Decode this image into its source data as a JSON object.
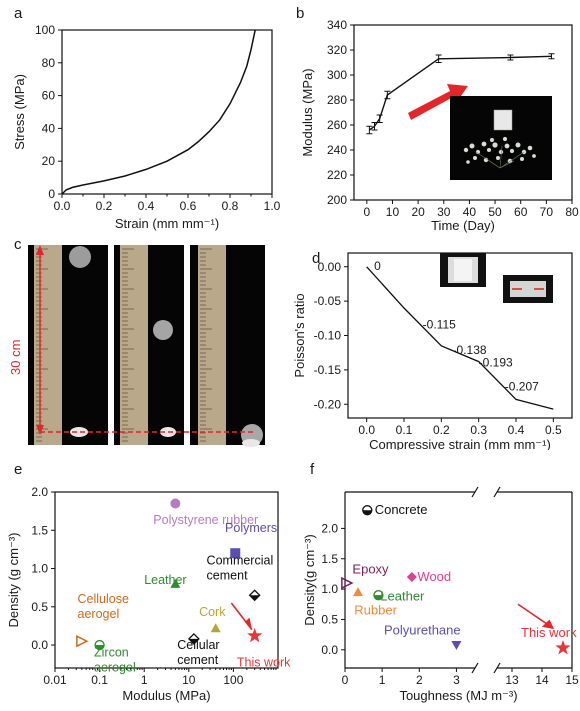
{
  "panels": {
    "a": "a",
    "b": "b",
    "c": "c",
    "d": "d",
    "e": "e",
    "f": "f"
  },
  "photo": {
    "height_label": "30 cm"
  },
  "chart_data": [
    {
      "id": "a",
      "type": "line",
      "title": "",
      "xlabel": "Strain (mm mm⁻¹)",
      "ylabel": "Stress (MPa)",
      "xlim": [
        0.0,
        1.0
      ],
      "ylim": [
        0,
        100
      ],
      "xticks": [
        "0.0",
        "0.2",
        "0.4",
        "0.6",
        "0.8",
        "1.0"
      ],
      "yticks": [
        "0",
        "20",
        "40",
        "60",
        "80",
        "100"
      ],
      "x": [
        0.0,
        0.02,
        0.05,
        0.1,
        0.2,
        0.3,
        0.4,
        0.5,
        0.6,
        0.65,
        0.7,
        0.75,
        0.8,
        0.85,
        0.88,
        0.9,
        0.92
      ],
      "y": [
        0,
        2.5,
        4,
        5.5,
        8,
        11,
        15,
        20,
        27,
        32,
        38,
        45,
        55,
        68,
        78,
        88,
        100
      ]
    },
    {
      "id": "b",
      "type": "line",
      "title": "",
      "xlabel": "Time (Day)",
      "ylabel": "Modulus (MPa)",
      "xlim": [
        -5,
        80
      ],
      "ylim": [
        200,
        340
      ],
      "xticks": [
        "0",
        "10",
        "20",
        "30",
        "40",
        "50",
        "60",
        "70",
        "80"
      ],
      "yticks": [
        "200",
        "220",
        "240",
        "260",
        "280",
        "300",
        "320",
        "340"
      ],
      "x": [
        1,
        3,
        5,
        8,
        28,
        56,
        72
      ],
      "y": [
        256,
        259,
        265,
        284,
        313,
        314,
        315
      ],
      "err": [
        3,
        3,
        3,
        3,
        3,
        2,
        2
      ]
    },
    {
      "id": "d",
      "type": "line",
      "title": "",
      "xlabel": "Compressive strain (mm mm⁻¹)",
      "ylabel": "Poisson's ratio",
      "xlim": [
        -0.05,
        0.55
      ],
      "ylim": [
        -0.22,
        0.02
      ],
      "xticks": [
        "0.0",
        "0.1",
        "0.2",
        "0.3",
        "0.4",
        "0.5"
      ],
      "yticks": [
        "0.00",
        "-0.05",
        "-0.10",
        "-0.15",
        "-0.20"
      ],
      "x": [
        0.0,
        0.1,
        0.2,
        0.3,
        0.4,
        0.5
      ],
      "y": [
        0.0,
        -0.06,
        -0.115,
        -0.138,
        -0.193,
        -0.207
      ],
      "annotations": [
        {
          "text": "0",
          "x": 0.02,
          "y": -0.005
        },
        {
          "text": "-0.115",
          "x": 0.15,
          "y": -0.09
        },
        {
          "text": "-0.138",
          "x": 0.23,
          "y": -0.127
        },
        {
          "text": "-0.193",
          "x": 0.3,
          "y": -0.145
        },
        {
          "text": "-0.207",
          "x": 0.37,
          "y": -0.18
        }
      ]
    },
    {
      "id": "e",
      "type": "scatter",
      "title": "",
      "xlabel": "Modulus (MPa)",
      "ylabel": "Density (g cm⁻³)",
      "xscale": "log",
      "xlim": [
        0.01,
        1000
      ],
      "ylim": [
        -0.3,
        2.0
      ],
      "xticks": [
        "0.01",
        "0.1",
        "1",
        "10",
        "100"
      ],
      "yticks": [
        "0.0",
        "0.5",
        "1.0",
        "1.5",
        "2.0"
      ],
      "points": [
        {
          "label": "Polystyrene rubber",
          "x": 5,
          "y": 1.85,
          "color": "#b57dc2",
          "marker": "circle",
          "label_x": 1.6,
          "label_y": 1.58
        },
        {
          "label": "Polymers",
          "x": 110,
          "y": 1.2,
          "color": "#5a4fb0",
          "marker": "square",
          "label_x": 65,
          "label_y": 1.48
        },
        {
          "label": "Leather",
          "x": 5,
          "y": 0.8,
          "color": "#2e8b2e",
          "marker": "triangle",
          "label_x": 1.0,
          "label_y": 0.8
        },
        {
          "label": "Commercial cement",
          "x": 300,
          "y": 0.65,
          "color": "#111111",
          "marker": "diamond-half",
          "label_x": 25,
          "label_y": 1.05,
          "label2": ""
        },
        {
          "label": "Cellulose aerogel",
          "x": 0.04,
          "y": 0.05,
          "color": "#d2691e",
          "marker": "triangle-right",
          "label_x": 0.032,
          "label_y": 0.55
        },
        {
          "label": "Zircon aerogel",
          "x": 0.1,
          "y": 0.0,
          "color": "#2e8b2e",
          "marker": "circle-half",
          "label_x": 0.075,
          "label_y": -0.15
        },
        {
          "label": "Cork",
          "x": 40,
          "y": 0.22,
          "color": "#b5a63a",
          "marker": "triangle",
          "label_x": 17,
          "label_y": 0.38
        },
        {
          "label": "Cellular cement",
          "x": 13,
          "y": 0.08,
          "color": "#111111",
          "marker": "diamond-half",
          "label_x": 5.5,
          "label_y": -0.05
        },
        {
          "label": "This work",
          "x": 300,
          "y": 0.12,
          "color": "#e8363a",
          "marker": "star",
          "label_x": 120,
          "label_y": -0.28
        }
      ]
    },
    {
      "id": "f",
      "type": "scatter",
      "title": "",
      "xlabel": "Toughness (MJ m⁻³)",
      "ylabel": "Density(g cm⁻³)",
      "xlim": [
        0,
        15
      ],
      "ylim": [
        -0.3,
        2.6
      ],
      "xticks": [
        "0",
        "1",
        "2",
        "3",
        "13",
        "14",
        "15"
      ],
      "yticks": [
        "0.0",
        "0.5",
        "1.0",
        "1.5",
        "2.0"
      ],
      "axis_break": "between 3 and 13",
      "points": [
        {
          "label": "Concrete",
          "x": 0.6,
          "y": 2.3,
          "color": "#111111",
          "marker": "circle-half",
          "label_x": 0.8,
          "label_y": 2.3
        },
        {
          "label": "Epoxy",
          "x": 0.05,
          "y": 1.1,
          "color": "#7b1e5a",
          "marker": "triangle-right",
          "label_x": 0.2,
          "label_y": 1.32
        },
        {
          "label": "Wood",
          "x": 1.8,
          "y": 1.2,
          "color": "#e0408f",
          "marker": "diamond",
          "label_x": 1.95,
          "label_y": 1.2
        },
        {
          "label": "Leather",
          "x": 0.9,
          "y": 0.9,
          "color": "#2e8b2e",
          "marker": "circle-half",
          "label_x": 0.95,
          "label_y": 0.88
        },
        {
          "label": "Rubber",
          "x": 0.35,
          "y": 0.95,
          "color": "#f08a3c",
          "marker": "triangle",
          "label_x": 0.25,
          "label_y": 0.65
        },
        {
          "label": "Polyurethane",
          "x": 3.0,
          "y": 0.08,
          "color": "#5a4fb0",
          "marker": "triangle-down",
          "label_x": 1.05,
          "label_y": 0.32
        },
        {
          "label": "This work",
          "x": 14.7,
          "y": 0.03,
          "color": "#e8363a",
          "marker": "star",
          "label_x": 13.3,
          "label_y": 0.28
        }
      ]
    }
  ]
}
